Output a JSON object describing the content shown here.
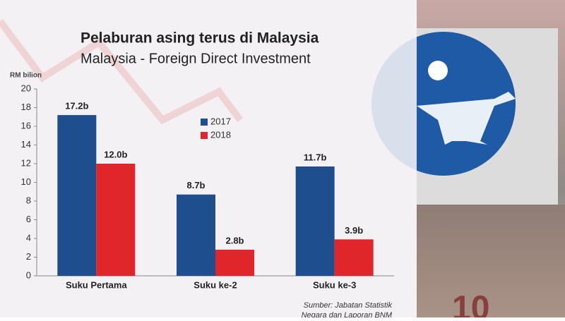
{
  "chart_data": {
    "type": "bar",
    "title": "Pelaburan asing terus di Malaysia",
    "subtitle": "Malaysia - Foreign Direct Investment",
    "y_label": "RM bilion",
    "categories": [
      "Suku Pertama",
      "Suku ke-2",
      "Suku ke-3"
    ],
    "series": [
      {
        "name": "2017",
        "color": "#1f4e8f",
        "values": [
          17.2,
          8.7,
          11.7
        ],
        "value_labels": [
          "17.2b",
          "8.7b",
          "11.7b"
        ]
      },
      {
        "name": "2018",
        "color": "#e0262b",
        "values": [
          12.0,
          2.8,
          3.9
        ],
        "value_labels": [
          "12.0b",
          "2.8b",
          "3.9b"
        ]
      }
    ],
    "ylim": [
      0,
      20
    ],
    "yticks": [
      0,
      2,
      4,
      6,
      8,
      10,
      12,
      14,
      16,
      18,
      20
    ],
    "source": [
      "Sumber: Jabatan Statistik",
      "Negara dan Laporan BNM"
    ]
  }
}
